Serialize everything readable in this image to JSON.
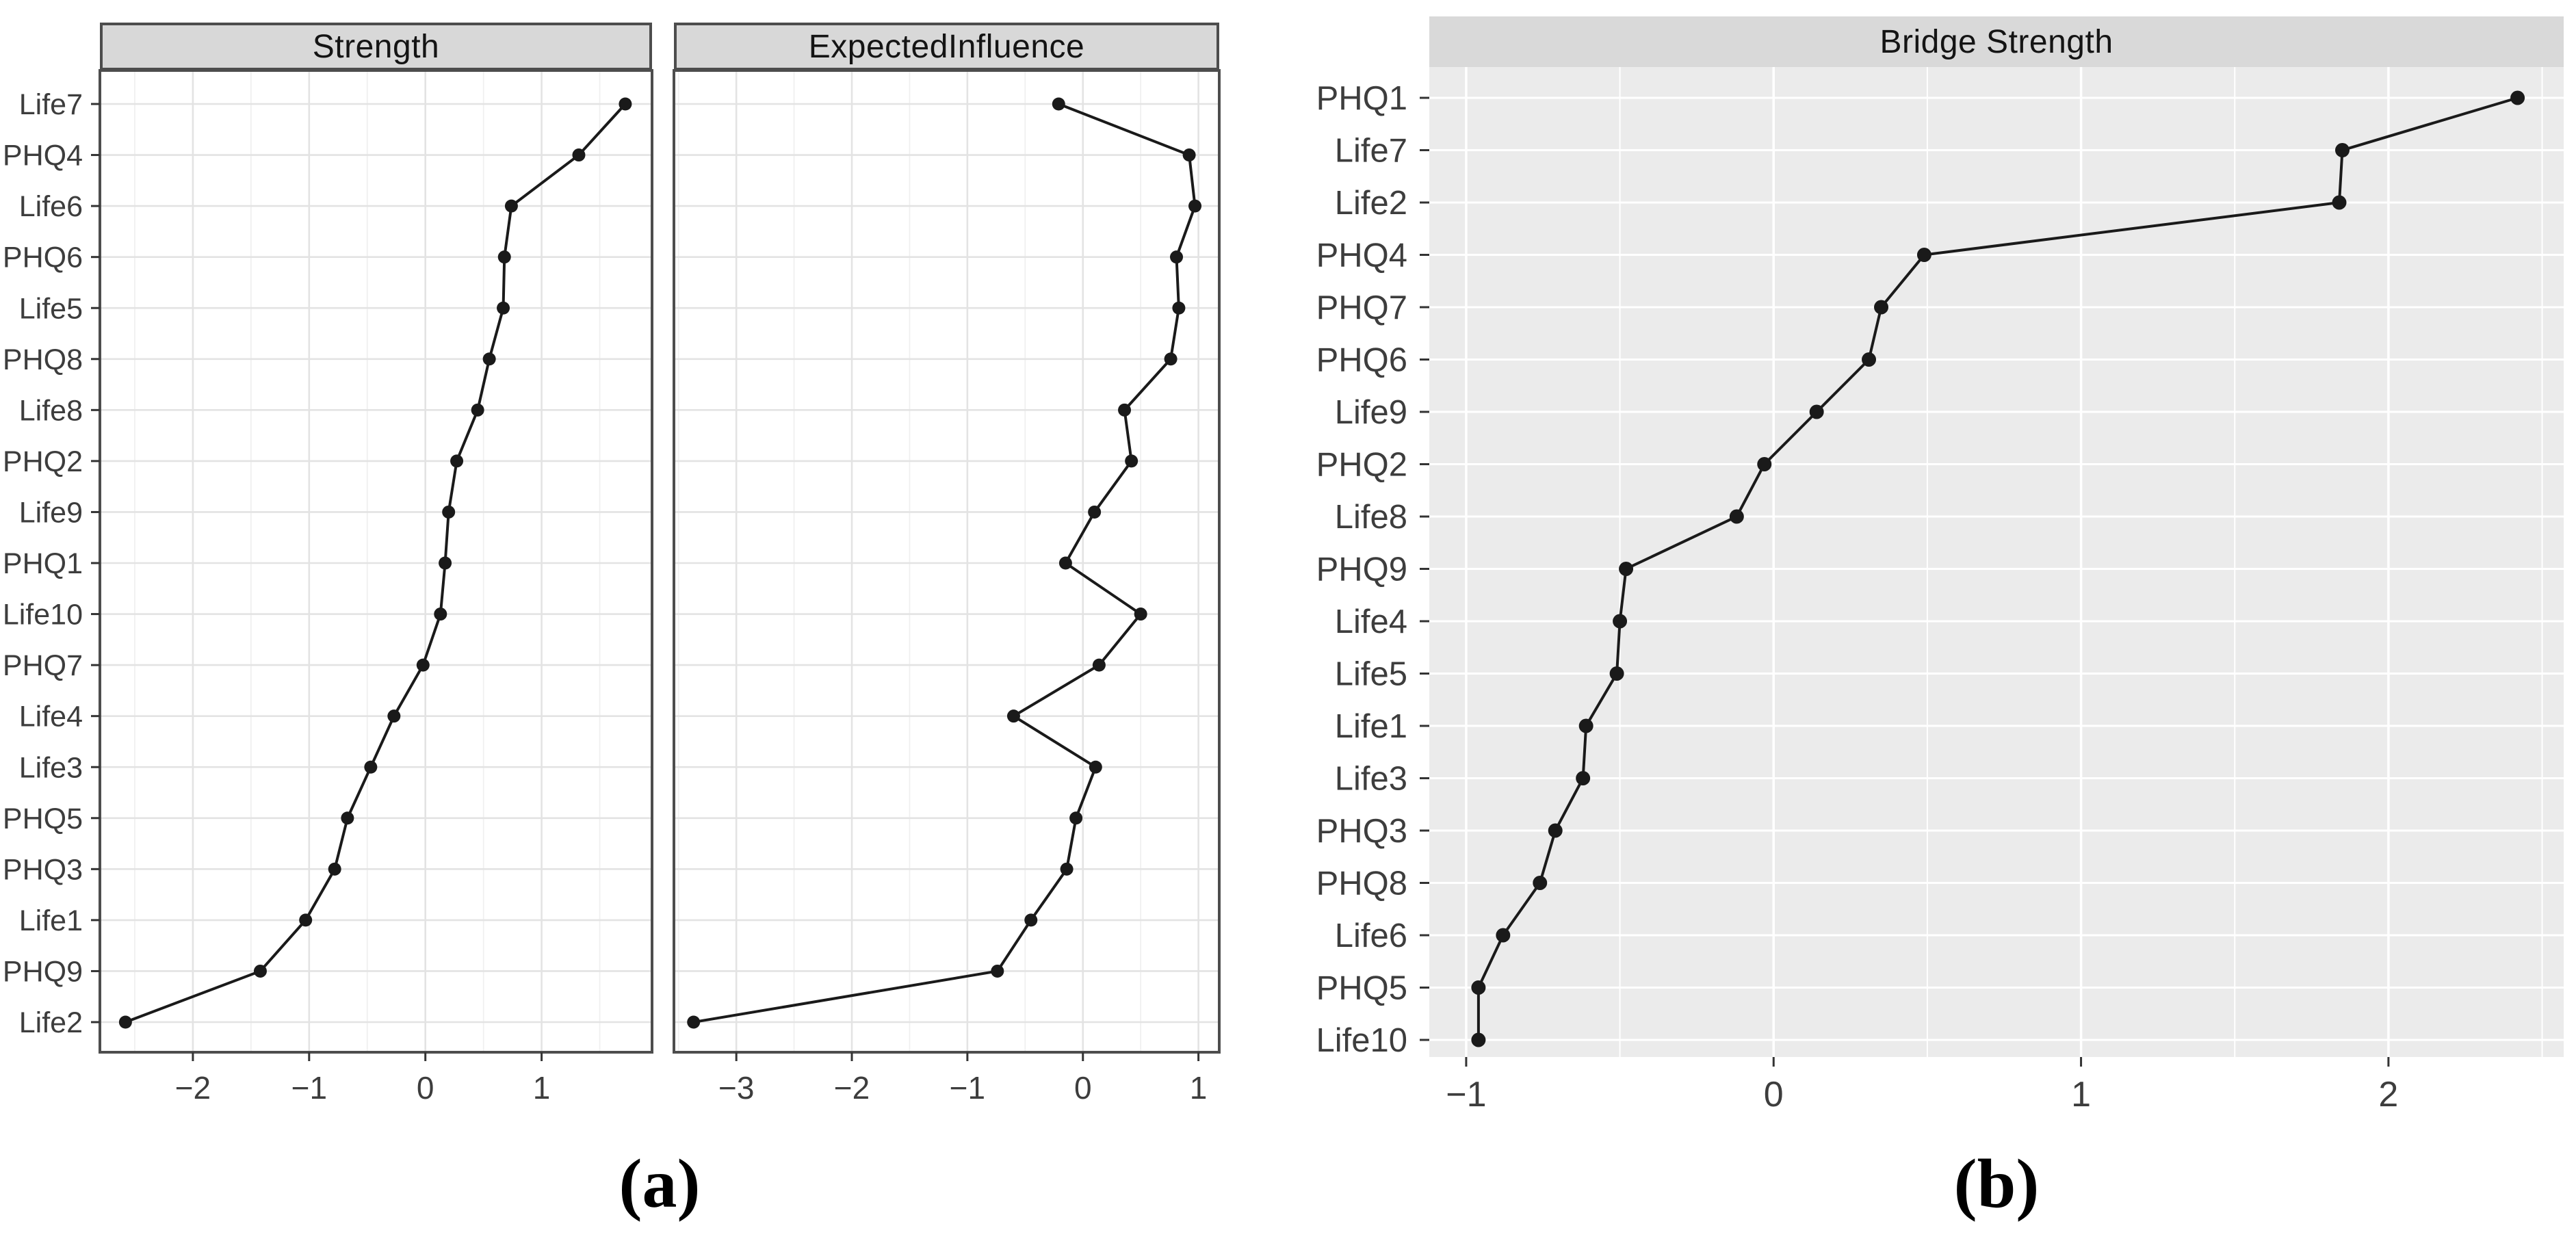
{
  "captions": {
    "a": "(a)",
    "b": "(b)"
  },
  "style": {
    "background": "#ffffff",
    "panel_bg_white": "#ffffff",
    "panel_bg_gray": "#ebebeb",
    "strip_bg": "#d8d8d8",
    "panel_border": "#4d4d4d",
    "grid_major_light": "#e3e3e3",
    "grid_minor_light": "#f0f0f0",
    "grid_white": "#ffffff",
    "line_color": "#1a1a1a",
    "point_color": "#1a1a1a",
    "axis_text_color": "#3d3d3d",
    "tick_color": "#333333"
  },
  "chart_data": [
    {
      "type": "line",
      "title": "Strength",
      "orientation": "horizontal-categories",
      "categories": [
        "Life7",
        "PHQ4",
        "Life6",
        "PHQ6",
        "Life5",
        "PHQ8",
        "Life8",
        "PHQ2",
        "Life9",
        "PHQ1",
        "Life10",
        "PHQ7",
        "Life4",
        "Life3",
        "PHQ5",
        "PHQ3",
        "Life1",
        "PHQ9",
        "Life2"
      ],
      "values": [
        1.72,
        1.32,
        0.74,
        0.68,
        0.67,
        0.55,
        0.45,
        0.27,
        0.2,
        0.17,
        0.13,
        -0.02,
        -0.27,
        -0.47,
        -0.67,
        -0.78,
        -1.03,
        -1.42,
        -2.58
      ],
      "xlim": [
        -2.8,
        1.95
      ],
      "xticks": [
        {
          "v": -2,
          "label": "−2"
        },
        {
          "v": -1,
          "label": "−1"
        },
        {
          "v": 0,
          "label": "0"
        },
        {
          "v": 1,
          "label": "1"
        }
      ],
      "show_y_labels": true,
      "theme": "bw",
      "grid": "x-major+minor, y-rows",
      "legend": "none"
    },
    {
      "type": "line",
      "title": "ExpectedInfluence",
      "orientation": "horizontal-categories",
      "categories": [
        "Life7",
        "PHQ4",
        "Life6",
        "PHQ6",
        "Life5",
        "PHQ8",
        "Life8",
        "PHQ2",
        "Life9",
        "PHQ1",
        "Life10",
        "PHQ7",
        "Life4",
        "Life3",
        "PHQ5",
        "PHQ3",
        "Life1",
        "PHQ9",
        "Life2"
      ],
      "values": [
        -0.21,
        0.92,
        0.97,
        0.81,
        0.83,
        0.76,
        0.36,
        0.42,
        0.1,
        -0.15,
        0.5,
        0.14,
        -0.6,
        0.11,
        -0.06,
        -0.14,
        -0.45,
        -0.74,
        -3.37
      ],
      "xlim": [
        -3.54,
        1.18
      ],
      "xticks": [
        {
          "v": -3,
          "label": "−3"
        },
        {
          "v": -2,
          "label": "−2"
        },
        {
          "v": -1,
          "label": "−1"
        },
        {
          "v": 0,
          "label": "0"
        },
        {
          "v": 1,
          "label": "1"
        }
      ],
      "show_y_labels": false,
      "theme": "bw",
      "grid": "x-major+minor, y-rows",
      "legend": "none"
    },
    {
      "type": "line",
      "title": "Bridge Strength",
      "orientation": "horizontal-categories",
      "categories": [
        "PHQ1",
        "Life7",
        "Life2",
        "PHQ4",
        "PHQ7",
        "PHQ6",
        "Life9",
        "PHQ2",
        "Life8",
        "PHQ9",
        "Life4",
        "Life5",
        "Life1",
        "Life3",
        "PHQ3",
        "PHQ8",
        "Life6",
        "PHQ5",
        "Life10"
      ],
      "values": [
        2.42,
        1.85,
        1.84,
        0.49,
        0.35,
        0.31,
        0.14,
        -0.03,
        -0.12,
        -0.48,
        -0.5,
        -0.51,
        -0.61,
        -0.62,
        -0.71,
        -0.76,
        -0.88,
        -0.96,
        -0.96
      ],
      "xlim": [
        -1.12,
        2.57
      ],
      "xticks": [
        {
          "v": -1,
          "label": "−1"
        },
        {
          "v": 0,
          "label": "0"
        },
        {
          "v": 1,
          "label": "1"
        },
        {
          "v": 2,
          "label": "2"
        }
      ],
      "show_y_labels": true,
      "theme": "gray",
      "grid": "x-major+minor, y-rows",
      "legend": "none"
    }
  ]
}
